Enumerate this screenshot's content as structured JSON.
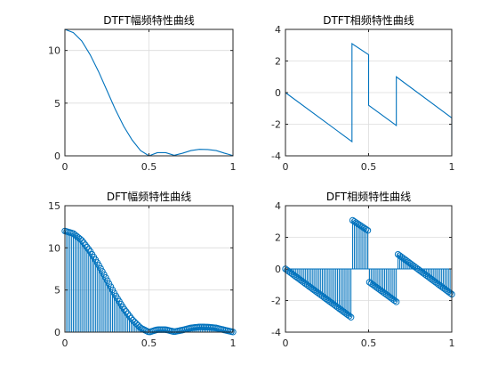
{
  "figure": {
    "background": "#ffffff"
  },
  "chart_data": [
    {
      "type": "line",
      "title": "DTFT幅频特性曲线",
      "xlabel": "",
      "ylabel": "",
      "xlim": [
        0,
        1
      ],
      "ylim": [
        0,
        12
      ],
      "xticks": [
        0,
        0.5,
        1
      ],
      "xtick_labels": [
        "0",
        "0.5",
        "1"
      ],
      "yticks": [
        0,
        5,
        10
      ],
      "ytick_labels": [
        "0",
        "5",
        "10"
      ],
      "grid": true,
      "color": "#0072BD",
      "x": [
        0,
        0.05,
        0.1,
        0.15,
        0.2,
        0.25,
        0.3,
        0.35,
        0.4,
        0.45,
        0.5,
        0.55,
        0.6,
        0.65,
        0.7,
        0.75,
        0.8,
        0.85,
        0.9,
        0.95,
        1.0
      ],
      "y": [
        12,
        11.7,
        10.9,
        9.6,
        8.0,
        6.2,
        4.4,
        2.8,
        1.5,
        0.5,
        0.0,
        0.3,
        0.3,
        0.05,
        0.25,
        0.5,
        0.62,
        0.6,
        0.5,
        0.25,
        0.02
      ]
    },
    {
      "type": "line",
      "title": "DTFT相频特性曲线",
      "xlabel": "",
      "ylabel": "",
      "xlim": [
        0,
        1
      ],
      "ylim": [
        -4,
        4
      ],
      "xticks": [
        0,
        0.5,
        1
      ],
      "xtick_labels": [
        "0",
        "0.5",
        "1"
      ],
      "yticks": [
        -4,
        -2,
        0,
        2,
        4
      ],
      "ytick_labels": [
        "-4",
        "-2",
        "0",
        "2",
        "4"
      ],
      "grid": true,
      "color": "#0072BD",
      "x": [
        0,
        0.4,
        0.4,
        0.5,
        0.5,
        0.6667,
        0.6667,
        1.0,
        1.0
      ],
      "y": [
        0,
        -3.1,
        3.1,
        2.4,
        -0.8,
        -2.08,
        1.0,
        -1.6,
        -3.0
      ]
    },
    {
      "type": "stem",
      "title": "DFT幅频特性曲线",
      "xlabel": "",
      "ylabel": "",
      "xlim": [
        0,
        1
      ],
      "ylim": [
        0,
        15
      ],
      "xticks": [
        0,
        0.5,
        1
      ],
      "xtick_labels": [
        "0",
        "0.5",
        "1"
      ],
      "yticks": [
        0,
        5,
        10,
        15
      ],
      "ytick_labels": [
        "0",
        "5",
        "10",
        "15"
      ],
      "grid": true,
      "color": "#0072BD",
      "source_curve": "DTFT幅频特性曲线",
      "points": 100
    },
    {
      "type": "stem",
      "title": "DFT相频特性曲线",
      "xlabel": "",
      "ylabel": "",
      "xlim": [
        0,
        1
      ],
      "ylim": [
        -4,
        4
      ],
      "xticks": [
        0,
        0.5,
        1
      ],
      "xtick_labels": [
        "0",
        "0.5",
        "1"
      ],
      "yticks": [
        -4,
        -2,
        0,
        2,
        4
      ],
      "ytick_labels": [
        "-4",
        "-2",
        "0",
        "2",
        "4"
      ],
      "grid": true,
      "color": "#0072BD",
      "source_curve": "DTFT相频特性曲线",
      "points": 100
    }
  ]
}
